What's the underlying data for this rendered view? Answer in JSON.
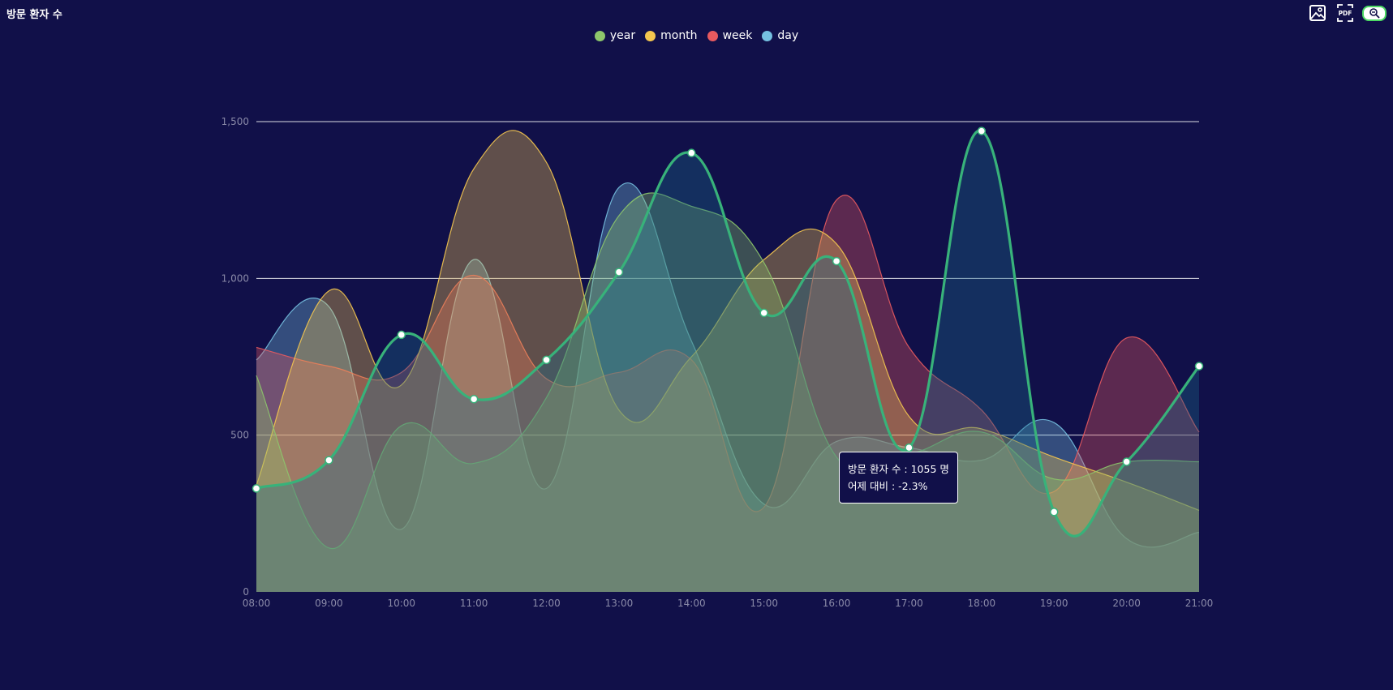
{
  "title": "방문 환자 수",
  "toolbar": {
    "image_icon": "image-icon",
    "pdf_label": "PDF",
    "zoom_icon": "zoom-icon"
  },
  "tooltip": {
    "line1": "방문 환자 수 : 1055 명",
    "line2": "어제 대비 : -2.3%"
  },
  "chart_data": {
    "type": "area",
    "x": [
      "08:00",
      "09:00",
      "10:00",
      "11:00",
      "12:00",
      "13:00",
      "14:00",
      "15:00",
      "16:00",
      "17:00",
      "18:00",
      "19:00",
      "20:00",
      "21:00"
    ],
    "ylim": [
      0,
      1500
    ],
    "yticks": [
      0,
      500,
      1000,
      1500
    ],
    "ytick_labels": [
      "0",
      "500",
      "1,000",
      "1,500"
    ],
    "grid": true,
    "legend_position": "top-center",
    "series": [
      {
        "name": "year",
        "color": "#8dc66b",
        "values": [
          690,
          140,
          530,
          410,
          620,
          1200,
          1230,
          1050,
          430,
          440,
          510,
          360,
          415,
          415
        ]
      },
      {
        "name": "month",
        "color": "#f4c64f",
        "values": [
          340,
          960,
          660,
          1350,
          1370,
          580,
          750,
          1060,
          1110,
          560,
          520,
          430,
          350,
          260
        ]
      },
      {
        "name": "week",
        "color": "#e85a5f",
        "values": [
          780,
          720,
          700,
          1010,
          680,
          700,
          740,
          270,
          1250,
          780,
          580,
          320,
          810,
          510
        ]
      },
      {
        "name": "day",
        "color": "#75c0e0",
        "values": [
          740,
          910,
          200,
          1060,
          330,
          1290,
          800,
          280,
          480,
          460,
          420,
          540,
          170,
          190
        ]
      }
    ],
    "highlight_line": {
      "color": "#38b27a",
      "values": [
        330,
        420,
        820,
        615,
        740,
        1020,
        1400,
        890,
        1055,
        460,
        1470,
        255,
        415,
        720
      ]
    }
  }
}
